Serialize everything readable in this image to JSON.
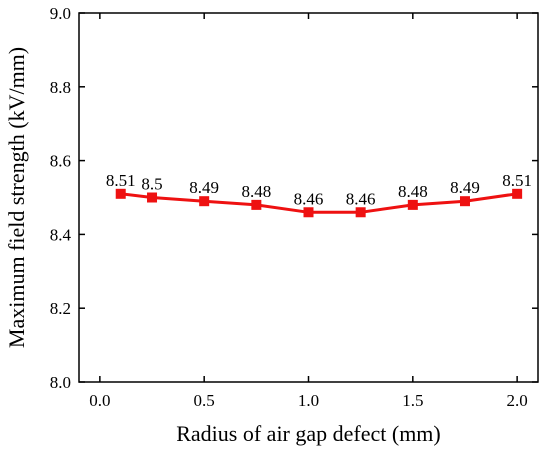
{
  "chart_data": {
    "type": "line",
    "xlabel": "Radius of air gap defect (mm)",
    "ylabel": "Maximum field strength (kV/mm)",
    "xlim": [
      -0.1,
      2.1
    ],
    "ylim": [
      8.0,
      9.0
    ],
    "xticks": [
      "0.0",
      "0.5",
      "1.0",
      "1.5",
      "2.0"
    ],
    "yticks": [
      "8.0",
      "8.2",
      "8.4",
      "8.6",
      "8.8",
      "9.0"
    ],
    "grid": false,
    "series": [
      {
        "x": [
          0.1,
          0.25,
          0.5,
          0.75,
          1.0,
          1.25,
          1.5,
          1.75,
          2.0
        ],
        "y": [
          8.51,
          8.5,
          8.49,
          8.48,
          8.46,
          8.46,
          8.48,
          8.49,
          8.51
        ],
        "labels": [
          "8.51",
          "8.5",
          "8.49",
          "8.48",
          "8.46",
          "8.46",
          "8.48",
          "8.49",
          "8.51"
        ],
        "color": "#ee1111",
        "marker": "square"
      }
    ]
  }
}
